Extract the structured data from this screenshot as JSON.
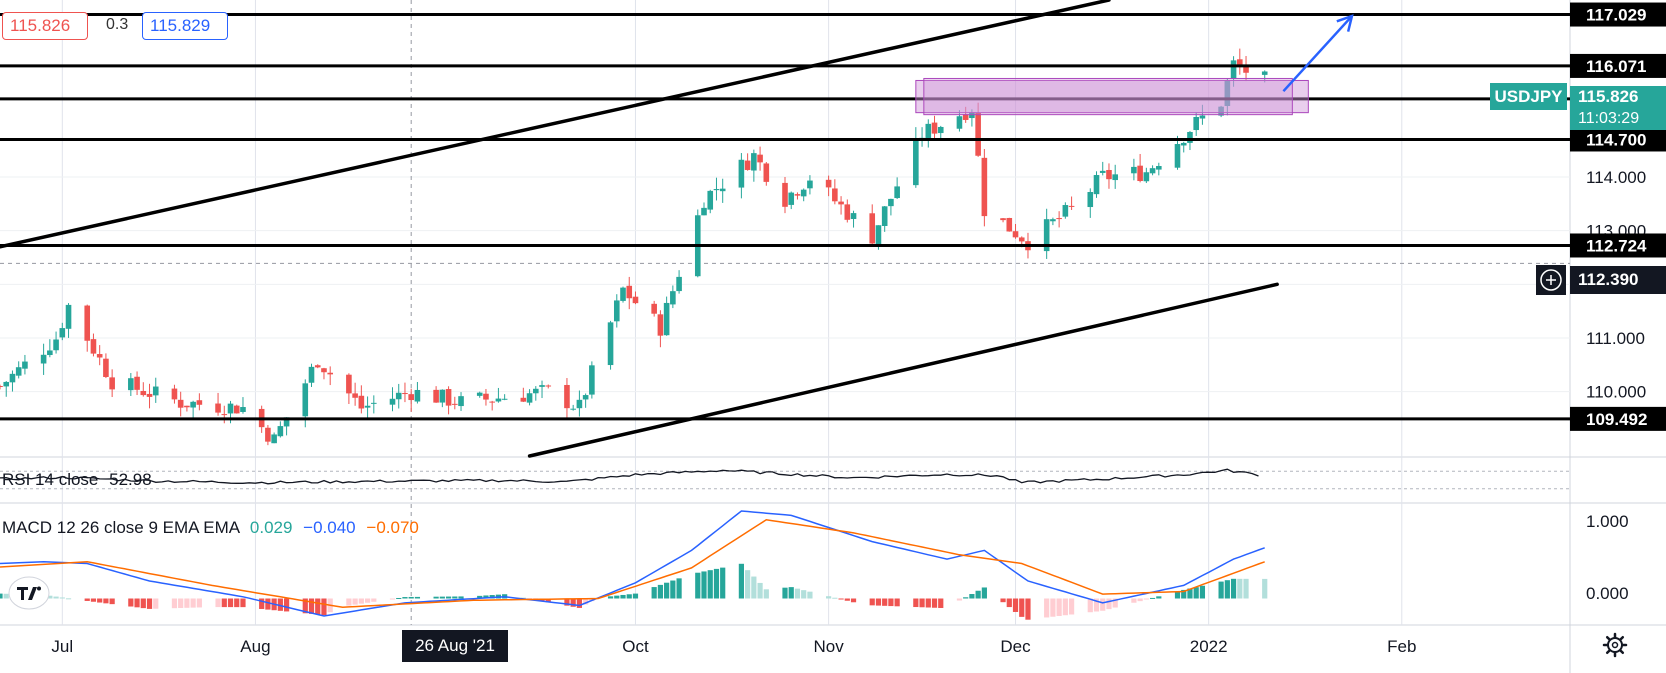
{
  "header": {
    "bid_price": "115.826",
    "spread": "0.3",
    "ask_price": "115.829"
  },
  "symbol_tag": {
    "symbol": "USDJPY",
    "price": "115.826",
    "countdown": "11:03:29",
    "color": "#26a69a"
  },
  "crosshair": {
    "date_label": "26 Aug '21",
    "price_label": "112.390"
  },
  "time_axis": {
    "labels": [
      {
        "text": "Jul",
        "date": "2021-07-01"
      },
      {
        "text": "Aug",
        "date": "2021-08-01"
      },
      {
        "text": "Oct",
        "date": "2021-10-01"
      },
      {
        "text": "Nov",
        "date": "2021-11-01"
      },
      {
        "text": "Dec",
        "date": "2021-12-01"
      },
      {
        "text": "2022",
        "date": "2022-01-01"
      },
      {
        "text": "Feb",
        "date": "2022-02-01"
      }
    ]
  },
  "rsi": {
    "label": "RSI 14 close",
    "value": "52.98"
  },
  "macd": {
    "label": "MACD 12 26 close 9 EMA EMA",
    "hist_value": "0.029",
    "macd_value": "−0.040",
    "signal_value": "−0.070",
    "colors": {
      "hist": "#26a69a",
      "macd": "#2962ff",
      "signal": "#ff6d00"
    },
    "axis_labels": [
      "1.000",
      "0.000"
    ]
  },
  "colors": {
    "up": "#26a69a",
    "down": "#ef5350",
    "zone": "#ce93d8",
    "arrow": "#2962ff"
  },
  "chart_data": [
    {
      "type": "candlestick",
      "title": "",
      "symbol": "USDJPY",
      "timeframe": "1D",
      "x_range": [
        "2021-06-21",
        "2022-02-28"
      ],
      "ylim": [
        108.8,
        117.3
      ],
      "y_ticks": [
        "109.492",
        "110.000",
        "111.000",
        "112.000",
        "113.000",
        "114.000",
        "114.700",
        "115.456",
        "116.071",
        "117.029"
      ],
      "close_series": [
        {
          "date": "2021-06-21",
          "close": 110.1
        },
        {
          "date": "2021-06-30",
          "close": 111.0
        },
        {
          "date": "2021-07-02",
          "close": 111.6
        },
        {
          "date": "2021-07-09",
          "close": 110.2
        },
        {
          "date": "2021-07-20",
          "close": 109.8
        },
        {
          "date": "2021-07-30",
          "close": 109.7
        },
        {
          "date": "2021-08-04",
          "close": 109.1
        },
        {
          "date": "2021-08-11",
          "close": 110.6
        },
        {
          "date": "2021-08-18",
          "close": 109.7
        },
        {
          "date": "2021-08-26",
          "close": 110.0
        },
        {
          "date": "2021-09-03",
          "close": 109.8
        },
        {
          "date": "2021-09-10",
          "close": 109.9
        },
        {
          "date": "2021-09-17",
          "close": 110.0
        },
        {
          "date": "2021-09-22",
          "close": 109.7
        },
        {
          "date": "2021-09-29",
          "close": 111.9
        },
        {
          "date": "2021-10-05",
          "close": 111.2
        },
        {
          "date": "2021-10-12",
          "close": 113.6
        },
        {
          "date": "2021-10-20",
          "close": 114.4
        },
        {
          "date": "2021-10-25",
          "close": 113.6
        },
        {
          "date": "2021-10-29",
          "close": 114.0
        },
        {
          "date": "2021-11-08",
          "close": 112.9
        },
        {
          "date": "2021-11-16",
          "close": 114.8
        },
        {
          "date": "2021-11-24",
          "close": 115.3
        },
        {
          "date": "2021-11-26",
          "close": 113.4
        },
        {
          "date": "2021-12-03",
          "close": 112.8
        },
        {
          "date": "2021-12-10",
          "close": 113.4
        },
        {
          "date": "2021-12-15",
          "close": 114.0
        },
        {
          "date": "2021-12-22",
          "close": 114.1
        },
        {
          "date": "2021-12-29",
          "close": 114.9
        },
        {
          "date": "2022-01-03",
          "close": 115.4
        },
        {
          "date": "2022-01-05",
          "close": 116.1
        },
        {
          "date": "2022-01-10",
          "close": 115.8
        }
      ],
      "horizontal_levels": [
        117.029,
        116.071,
        115.456,
        114.7,
        112.724,
        109.492
      ],
      "crosshair_price": 112.39,
      "trendlines": [
        {
          "from": {
            "date": "2021-06-21",
            "price": 112.7
          },
          "to": {
            "date": "2021-12-16",
            "price": 117.3
          }
        },
        {
          "from": {
            "date": "2021-09-14",
            "price": 108.8
          },
          "to": {
            "date": "2022-01-12",
            "price": 112.0
          }
        }
      ],
      "zone": {
        "from": "2021-11-15",
        "to": "2022-01-17",
        "low": 115.2,
        "high": 115.8
      },
      "projection_arrow": {
        "from": {
          "date": "2022-01-13",
          "price": 115.6
        },
        "to": {
          "date": "2022-01-24",
          "price": 117.0
        }
      }
    },
    {
      "type": "line",
      "title": "",
      "indicator": "RSI",
      "y_range": [
        0,
        100
      ],
      "x_range": [
        "2021-06-21",
        "2022-02-28"
      ],
      "series": [
        {
          "values": [
            {
              "date": "2021-06-21",
              "value": 52
            },
            {
              "date": "2021-07-01",
              "value": 56
            },
            {
              "date": "2021-07-15",
              "value": 48
            },
            {
              "date": "2021-08-01",
              "value": 44
            },
            {
              "date": "2021-08-20",
              "value": 47
            },
            {
              "date": "2021-09-10",
              "value": 49
            },
            {
              "date": "2021-09-20",
              "value": 46
            },
            {
              "date": "2021-10-01",
              "value": 62
            },
            {
              "date": "2021-10-15",
              "value": 72
            },
            {
              "date": "2021-10-25",
              "value": 64
            },
            {
              "date": "2021-11-05",
              "value": 55
            },
            {
              "date": "2021-11-20",
              "value": 63
            },
            {
              "date": "2021-11-28",
              "value": 60
            },
            {
              "date": "2021-12-02",
              "value": 44
            },
            {
              "date": "2021-12-15",
              "value": 52
            },
            {
              "date": "2021-12-28",
              "value": 62
            },
            {
              "date": "2022-01-04",
              "value": 72
            },
            {
              "date": "2022-01-10",
              "value": 60
            }
          ]
        }
      ]
    },
    {
      "type": "line",
      "title": "",
      "indicator": "MACD",
      "ylim": [
        -0.28,
        1.08
      ],
      "x_range": [
        "2021-06-21",
        "2022-02-28"
      ],
      "series": [
        {
          "values": [
            {
              "date": "2021-06-21",
              "value": 0.4
            },
            {
              "date": "2021-06-28",
              "value": 0.42
            },
            {
              "date": "2021-07-05",
              "value": 0.4
            },
            {
              "date": "2021-07-15",
              "value": 0.2
            },
            {
              "date": "2021-07-30",
              "value": 0.02
            },
            {
              "date": "2021-08-12",
              "value": -0.2
            },
            {
              "date": "2021-08-25",
              "value": -0.05
            },
            {
              "date": "2021-09-10",
              "value": 0.02
            },
            {
              "date": "2021-09-22",
              "value": -0.08
            },
            {
              "date": "2021-10-01",
              "value": 0.18
            },
            {
              "date": "2021-10-10",
              "value": 0.55
            },
            {
              "date": "2021-10-18",
              "value": 1.0
            },
            {
              "date": "2021-10-26",
              "value": 0.95
            },
            {
              "date": "2021-11-08",
              "value": 0.65
            },
            {
              "date": "2021-11-20",
              "value": 0.45
            },
            {
              "date": "2021-11-26",
              "value": 0.55
            },
            {
              "date": "2021-12-03",
              "value": 0.2
            },
            {
              "date": "2021-12-15",
              "value": -0.05
            },
            {
              "date": "2021-12-28",
              "value": 0.15
            },
            {
              "date": "2022-01-05",
              "value": 0.45
            },
            {
              "date": "2022-01-10",
              "value": 0.58
            }
          ]
        },
        {
          "values": [
            {
              "date": "2021-06-21",
              "value": 0.36
            },
            {
              "date": "2021-07-05",
              "value": 0.42
            },
            {
              "date": "2021-07-25",
              "value": 0.15
            },
            {
              "date": "2021-08-15",
              "value": -0.1
            },
            {
              "date": "2021-09-05",
              "value": -0.02
            },
            {
              "date": "2021-09-25",
              "value": 0.0
            },
            {
              "date": "2021-10-10",
              "value": 0.35
            },
            {
              "date": "2021-10-22",
              "value": 0.9
            },
            {
              "date": "2021-11-05",
              "value": 0.75
            },
            {
              "date": "2021-11-22",
              "value": 0.5
            },
            {
              "date": "2021-12-02",
              "value": 0.4
            },
            {
              "date": "2021-12-15",
              "value": 0.05
            },
            {
              "date": "2021-12-28",
              "value": 0.08
            },
            {
              "date": "2022-01-10",
              "value": 0.42
            }
          ]
        }
      ]
    }
  ]
}
